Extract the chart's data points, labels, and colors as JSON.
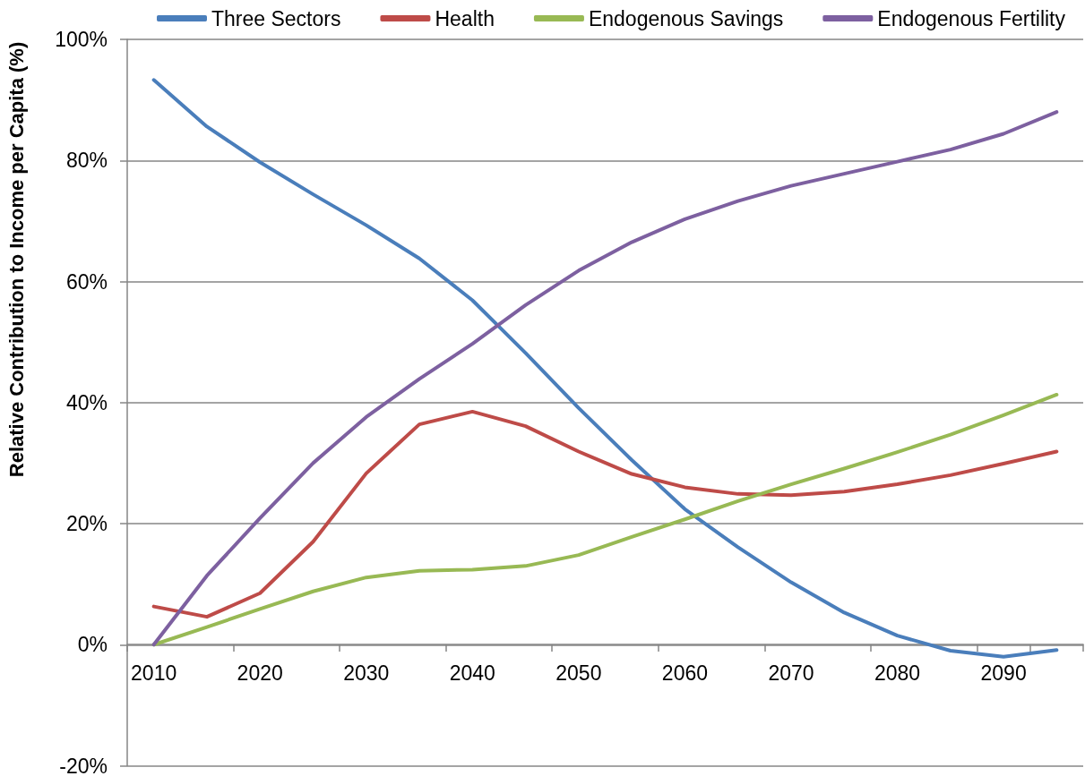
{
  "chart_data": {
    "type": "line",
    "ylabel": "Relative Contribution to Income per Capita (%)",
    "categories": [
      "2010",
      null,
      "2020",
      null,
      "2030",
      null,
      "2040",
      null,
      "2050",
      null,
      "2060",
      null,
      "2070",
      null,
      "2080",
      null,
      "2090",
      null
    ],
    "series": [
      {
        "name": "Three Sectors",
        "color": "#4a7ebb",
        "values": [
          93.3,
          85.6,
          79.7,
          74.4,
          69.3,
          63.8,
          56.9,
          48.2,
          39.1,
          30.5,
          22.4,
          16.1,
          10.3,
          5.3,
          1.5,
          -1.0,
          -2.0,
          -0.9
        ]
      },
      {
        "name": "Health",
        "color": "#be4b48",
        "values": [
          6.3,
          4.6,
          8.5,
          17.0,
          28.3,
          36.4,
          38.5,
          36.1,
          31.9,
          28.2,
          26.0,
          24.9,
          24.7,
          25.3,
          26.5,
          28.0,
          29.9,
          31.9
        ]
      },
      {
        "name": "Endogenous Savings",
        "color": "#98b954",
        "values": [
          0.0,
          2.9,
          5.9,
          8.8,
          11.1,
          12.2,
          12.4,
          13.0,
          14.8,
          17.8,
          20.7,
          23.7,
          26.5,
          29.1,
          31.8,
          34.7,
          37.9,
          41.3
        ]
      },
      {
        "name": "Endogenous Fertility",
        "color": "#7d60a0",
        "values": [
          0.0,
          11.4,
          20.9,
          30.0,
          37.6,
          43.9,
          49.7,
          56.1,
          61.8,
          66.5,
          70.3,
          73.3,
          75.8,
          77.8,
          79.8,
          81.8,
          84.4,
          88.0
        ]
      }
    ],
    "ylim": [
      -20,
      100
    ],
    "yticks": [
      {
        "value": -20,
        "label": "-20%"
      },
      {
        "value": 0,
        "label": "0%"
      },
      {
        "value": 20,
        "label": "20%"
      },
      {
        "value": 40,
        "label": "40%"
      },
      {
        "value": 60,
        "label": "60%"
      },
      {
        "value": 80,
        "label": "80%"
      },
      {
        "value": 100,
        "label": "100%"
      }
    ],
    "grid": "y",
    "legend": "top",
    "marker": "none",
    "line_style": "solid"
  }
}
